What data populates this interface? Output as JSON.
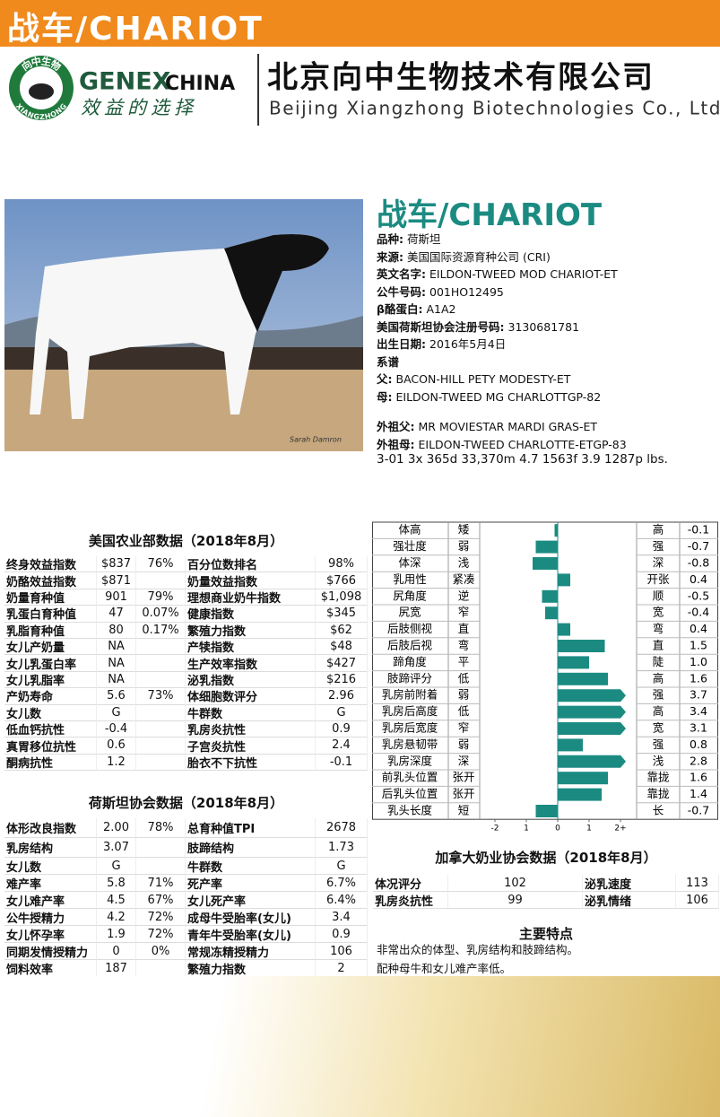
{
  "header": {
    "title": "战车/CHARIOT"
  },
  "logo": {
    "circle_top": "向中生物",
    "circle_bottom": "XIANGZHONG",
    "brand": "GENEX",
    "brand_suffix": "CHINA",
    "slogan": "效益的选择"
  },
  "company": {
    "name_cn": "北京向中生物技术有限公司",
    "name_en": "Beijing Xiangzhong Biotechnologies Co., Ltd"
  },
  "photo": {
    "credit": "Sarah Damron"
  },
  "bull": {
    "name": "战车/CHARIOT",
    "fields": [
      {
        "label": "品种:",
        "value": "荷斯坦"
      },
      {
        "label": "来源:",
        "value": "美国国际资源育种公司 (CRI)"
      },
      {
        "label": "英文名字:",
        "value": "EILDON-TWEED MOD CHARIOT-ET"
      },
      {
        "label": "公牛号码:",
        "value": "001HO12495"
      },
      {
        "label": "β酪蛋白:",
        "value": "A1A2"
      },
      {
        "label": "美国荷斯坦协会注册号码:",
        "value": "3130681781"
      },
      {
        "label": "出生日期:",
        "value": "2016年5月4日"
      }
    ],
    "pedigree_heading": "系谱",
    "parents": [
      {
        "label": "父:",
        "value": "BACON-HILL PETY MODESTY-ET"
      },
      {
        "label": "母:",
        "value": "EILDON-TWEED MG CHARLOTTGP-82"
      }
    ],
    "grandparents": [
      {
        "label": "外祖父:",
        "value": "MR MOVIESTAR MARDI GRAS-ET"
      },
      {
        "label": "外祖母:",
        "value": "EILDON-TWEED CHARLOTTE-ETGP-83"
      }
    ],
    "record": "3-01 3x 365d 33,370m 4.7 1563f 3.9 1287p lbs."
  },
  "usda": {
    "title": "美国农业部数据（2018年8月）",
    "rows": [
      [
        "终身效益指数",
        "$837",
        "76%",
        "百分位数排名",
        "98%"
      ],
      [
        "奶酪效益指数",
        "$871",
        null,
        "奶量效益指数",
        "$766"
      ],
      [
        "奶量育种值",
        "901",
        "79%",
        "理想商业奶牛指数",
        "$1,098"
      ],
      [
        "乳蛋白育种值",
        "47",
        "0.07%",
        "健康指数",
        "$345"
      ],
      [
        "乳脂育种值",
        "80",
        "0.17%",
        "繁殖力指数",
        "$62"
      ],
      [
        "女儿产奶量",
        "NA",
        null,
        "产犊指数",
        "$48"
      ],
      [
        "女儿乳蛋白率",
        "NA",
        null,
        "生产效率指数",
        "$427"
      ],
      [
        "女儿乳脂率",
        "NA",
        null,
        "泌乳指数",
        "$216"
      ],
      [
        "产奶寿命",
        "5.6",
        "73%",
        "体细胞数评分",
        "2.96"
      ],
      [
        "女儿数",
        "G",
        null,
        "牛群数",
        "G"
      ],
      [
        "低血钙抗性",
        "-0.4",
        null,
        "乳房炎抗性",
        "0.9"
      ],
      [
        "真胃移位抗性",
        "0.6",
        null,
        "子宫炎抗性",
        "2.4"
      ],
      [
        "酮病抗性",
        "1.2",
        null,
        "胎衣不下抗性",
        "-0.1"
      ]
    ]
  },
  "holstein": {
    "title": "荷斯坦协会数据（2018年8月）",
    "rows": [
      [
        "体形改良指数",
        "2.00",
        "78%",
        "总育种值TPI",
        "2678"
      ],
      [
        "乳房结构",
        "3.07",
        null,
        "肢蹄结构",
        "1.73"
      ],
      [
        "女儿数",
        "G",
        null,
        "牛群数",
        "G"
      ],
      [
        "难产率",
        "5.8",
        "71%",
        "死产率",
        "6.7%"
      ],
      [
        "女儿难产率",
        "4.5",
        "67%",
        "女儿死产率",
        "6.4%"
      ],
      [
        "公牛授精力",
        "4.2",
        "72%",
        "成母牛受胎率(女儿)",
        "3.4"
      ],
      [
        "女儿怀孕率",
        "1.9",
        "72%",
        "青年牛受胎率(女儿)",
        "0.9"
      ],
      [
        "同期发情授精力",
        "0",
        "0%",
        "常规冻精授精力",
        "106"
      ],
      [
        "饲料效率",
        "187",
        null,
        "繁殖力指数",
        "2"
      ]
    ]
  },
  "chart_data": {
    "type": "bar",
    "orientation": "horizontal",
    "categories": [
      "体高",
      "强壮度",
      "体深",
      "乳用性",
      "尻角度",
      "尻宽",
      "后肢侧视",
      "后肢后视",
      "蹄角度",
      "肢蹄评分",
      "乳房前附着",
      "乳房后高度",
      "乳房后宽度",
      "乳房悬韧带",
      "乳房深度",
      "前乳头位置",
      "后乳头位置",
      "乳头长度"
    ],
    "low_labels": [
      "矮",
      "弱",
      "浅",
      "紧凑",
      "逆",
      "窄",
      "直",
      "弯",
      "平",
      "低",
      "弱",
      "低",
      "窄",
      "弱",
      "深",
      "张开",
      "张开",
      "短"
    ],
    "high_labels": [
      "高",
      "强",
      "深",
      "开张",
      "顺",
      "宽",
      "弯",
      "直",
      "陡",
      "高",
      "强",
      "高",
      "宽",
      "强",
      "浅",
      "靠拢",
      "靠拢",
      "长"
    ],
    "values": [
      -0.1,
      -0.7,
      -0.8,
      0.4,
      -0.5,
      -0.4,
      0.4,
      1.5,
      1.0,
      1.6,
      3.7,
      3.4,
      3.1,
      0.8,
      2.8,
      1.6,
      1.4,
      -0.7
    ],
    "value_labels": [
      "-0.1",
      "-0.7",
      "-0.8",
      "0.4",
      "-0.5",
      "-0.4",
      "0.4",
      "1.5",
      "1.0",
      "1.6",
      "3.7",
      "3.4",
      "3.1",
      "0.8",
      "2.8",
      "1.6",
      "1.4",
      "-0.7"
    ],
    "xlim": [
      -2,
      2
    ],
    "xticks": [
      -2,
      {
        "value": -1,
        "label": "1"
      },
      0,
      1,
      {
        "value": 2,
        "label": "2+"
      }
    ],
    "color": "#1b8b82"
  },
  "canada": {
    "title": "加拿大奶业协会数据（2018年8月）",
    "rows": [
      [
        "体况评分",
        "102",
        "泌乳速度",
        "113"
      ],
      [
        "乳房炎抗性",
        "99",
        "泌乳情绪",
        "106"
      ]
    ]
  },
  "features": {
    "title": "主要特点",
    "items": [
      "非常出众的体型、乳房结构和肢蹄结构。",
      "配种母牛和女儿难产率低。"
    ]
  }
}
